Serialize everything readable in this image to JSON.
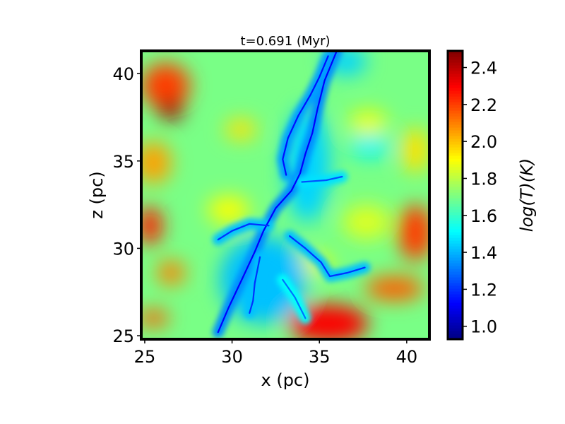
{
  "chart_data": {
    "type": "heatmap",
    "title": "t=0.691 (Myr)",
    "xlabel": "x (pc)",
    "ylabel": "z (pc)",
    "xlim": [
      24.8,
      41.3
    ],
    "ylim": [
      24.8,
      41.3
    ],
    "xticks": [
      25,
      30,
      35,
      40
    ],
    "yticks": [
      25,
      30,
      35,
      40
    ],
    "colormap": "jet",
    "colorbar": {
      "label": "log(T)(K)",
      "range": [
        0.93,
        2.49
      ],
      "ticks": [
        1.0,
        1.2,
        1.4,
        1.6,
        1.8,
        2.0,
        2.2,
        2.4
      ],
      "tick_labels": [
        "1.0",
        "1.2",
        "1.4",
        "1.6",
        "1.8",
        "2.0",
        "2.2",
        "2.4"
      ]
    },
    "background_value": 1.7,
    "field_features": [
      {
        "kind": "hot-blob",
        "x": 26.2,
        "y": 39.3,
        "sx": 1.4,
        "sy": 1.3,
        "value": 2.2
      },
      {
        "kind": "hot-blob",
        "x": 26.5,
        "y": 37.9,
        "sx": 0.7,
        "sy": 0.6,
        "value": 2.45
      },
      {
        "kind": "hot-blob",
        "x": 25.5,
        "y": 34.9,
        "sx": 1.0,
        "sy": 1.2,
        "value": 2.05
      },
      {
        "kind": "hot-blob",
        "x": 25.3,
        "y": 31.3,
        "sx": 0.7,
        "sy": 1.1,
        "value": 2.25
      },
      {
        "kind": "hot-blob",
        "x": 26.5,
        "y": 28.6,
        "sx": 0.8,
        "sy": 0.7,
        "value": 2.1
      },
      {
        "kind": "hot-blob",
        "x": 25.5,
        "y": 26.0,
        "sx": 0.9,
        "sy": 0.5,
        "value": 2.15
      },
      {
        "kind": "hot-blob",
        "x": 35.5,
        "y": 25.7,
        "sx": 2.3,
        "sy": 1.1,
        "value": 2.3
      },
      {
        "kind": "hot-blob",
        "x": 39.3,
        "y": 27.7,
        "sx": 1.7,
        "sy": 0.7,
        "value": 2.15
      },
      {
        "kind": "hot-blob",
        "x": 40.5,
        "y": 30.9,
        "sx": 1.0,
        "sy": 1.6,
        "value": 2.2
      },
      {
        "kind": "hot-blob",
        "x": 40.5,
        "y": 35.6,
        "sx": 0.8,
        "sy": 1.3,
        "value": 1.95
      },
      {
        "kind": "hot-blob",
        "x": 30.5,
        "y": 36.8,
        "sx": 0.9,
        "sy": 0.6,
        "value": 1.95
      },
      {
        "kind": "hot-blob",
        "x": 29.8,
        "y": 32.2,
        "sx": 1.2,
        "sy": 0.8,
        "value": 1.9
      },
      {
        "kind": "hot-blob",
        "x": 37.8,
        "y": 37.2,
        "sx": 1.1,
        "sy": 0.7,
        "value": 1.88
      },
      {
        "kind": "hot-blob",
        "x": 34.6,
        "y": 29.1,
        "sx": 1.2,
        "sy": 0.6,
        "value": 1.88
      },
      {
        "kind": "hot-blob",
        "x": 37.7,
        "y": 31.5,
        "sx": 1.4,
        "sy": 1.0,
        "value": 1.85
      },
      {
        "kind": "cool-blob",
        "x": 31.8,
        "y": 28.2,
        "sx": 2.5,
        "sy": 2.5,
        "value": 1.42
      },
      {
        "kind": "cool-blob",
        "x": 34.3,
        "y": 34.8,
        "sx": 1.3,
        "sy": 3.3,
        "value": 1.45
      },
      {
        "kind": "cool-blob",
        "x": 36.5,
        "y": 40.7,
        "sx": 1.2,
        "sy": 0.8,
        "value": 1.45
      },
      {
        "kind": "cool-blob",
        "x": 37.9,
        "y": 35.8,
        "sx": 1.2,
        "sy": 0.6,
        "value": 1.5
      }
    ],
    "filaments": [
      {
        "value": 1.12,
        "points": [
          [
            36.0,
            41.3
          ],
          [
            35.3,
            39.6
          ],
          [
            34.9,
            38.0
          ],
          [
            34.6,
            36.6
          ],
          [
            34.2,
            35.4
          ],
          [
            33.9,
            34.3
          ],
          [
            33.4,
            33.3
          ],
          [
            32.5,
            32.3
          ],
          [
            31.8,
            31.0
          ],
          [
            31.3,
            29.8
          ],
          [
            30.6,
            28.3
          ],
          [
            29.8,
            26.6
          ],
          [
            29.2,
            25.2
          ]
        ]
      },
      {
        "value": 1.15,
        "points": [
          [
            35.5,
            41.0
          ],
          [
            35.0,
            39.8
          ],
          [
            34.5,
            38.8
          ],
          [
            33.8,
            37.6
          ],
          [
            33.2,
            36.3
          ],
          [
            32.9,
            35.1
          ],
          [
            33.1,
            34.2
          ]
        ]
      },
      {
        "value": 1.2,
        "points": [
          [
            33.3,
            30.7
          ],
          [
            34.2,
            30.0
          ],
          [
            35.1,
            29.2
          ],
          [
            35.6,
            28.4
          ],
          [
            36.6,
            28.6
          ],
          [
            37.6,
            28.9
          ]
        ]
      },
      {
        "value": 1.2,
        "points": [
          [
            32.1,
            31.3
          ],
          [
            31.0,
            31.4
          ],
          [
            30.0,
            31.0
          ],
          [
            29.2,
            30.5
          ]
        ]
      },
      {
        "value": 1.2,
        "points": [
          [
            31.6,
            29.5
          ],
          [
            31.3,
            28.0
          ],
          [
            31.2,
            27.0
          ],
          [
            31.0,
            26.3
          ]
        ]
      },
      {
        "value": 1.25,
        "points": [
          [
            34.0,
            33.8
          ],
          [
            35.4,
            33.9
          ],
          [
            36.3,
            34.1
          ]
        ]
      },
      {
        "value": 1.3,
        "points": [
          [
            32.9,
            28.2
          ],
          [
            33.6,
            27.2
          ],
          [
            34.2,
            26.0
          ]
        ]
      }
    ]
  }
}
